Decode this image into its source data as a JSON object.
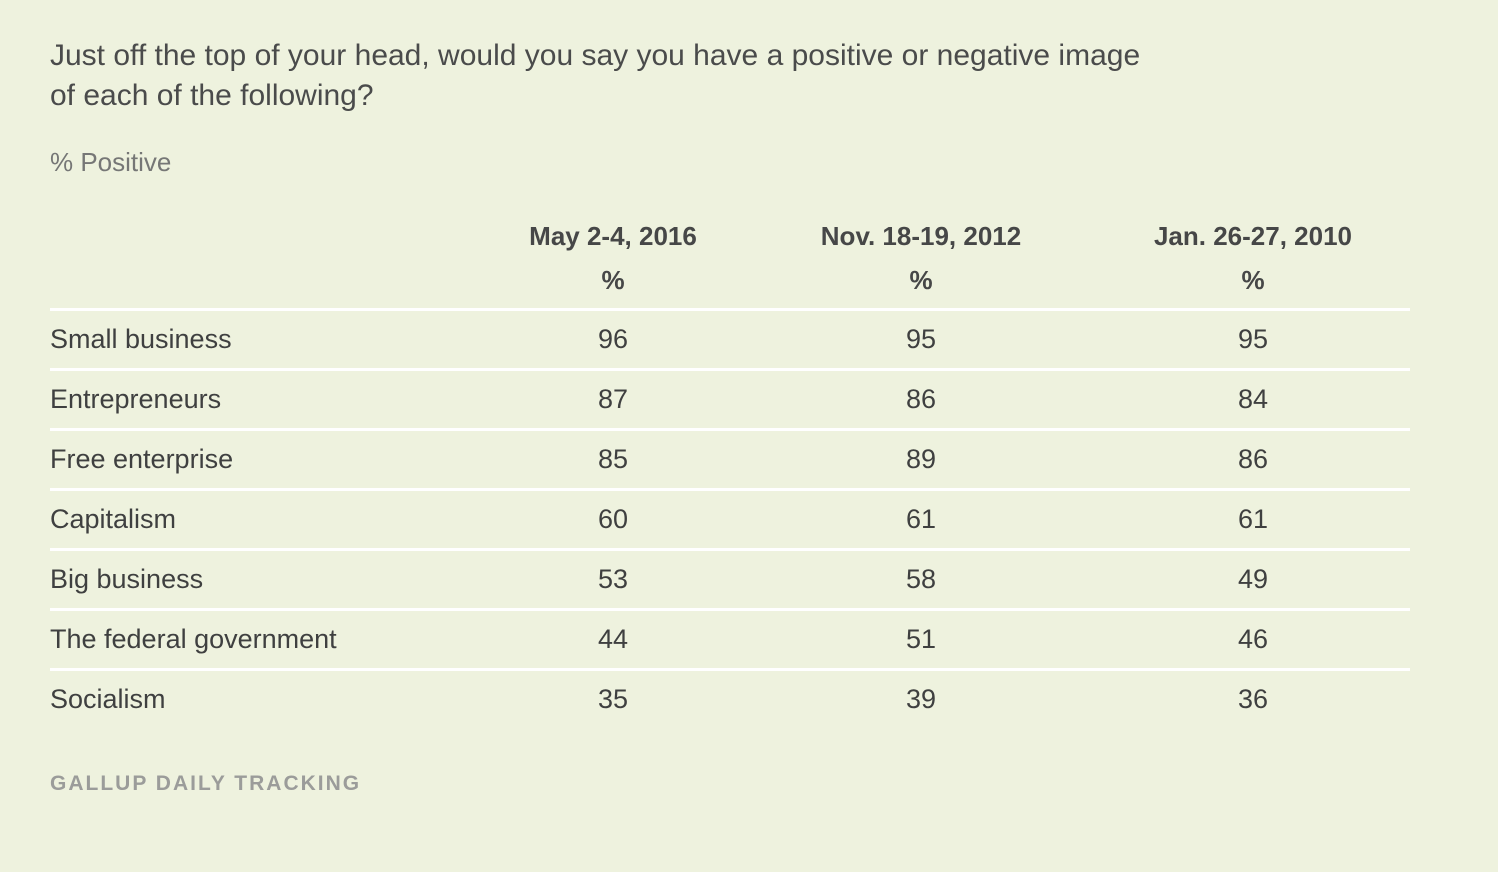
{
  "chart_data": {
    "type": "table",
    "title": "Just off the top of your head, would you say you have a positive or negative image of each of the following?",
    "subtitle": "% Positive",
    "columns": [
      {
        "label": "May 2-4, 2016",
        "unit": "%"
      },
      {
        "label": "Nov. 18-19, 2012",
        "unit": "%"
      },
      {
        "label": "Jan. 26-27, 2010",
        "unit": "%"
      }
    ],
    "rows": [
      {
        "label": "Small business",
        "values": [
          96,
          95,
          95
        ]
      },
      {
        "label": "Entrepreneurs",
        "values": [
          87,
          86,
          84
        ]
      },
      {
        "label": "Free enterprise",
        "values": [
          85,
          89,
          86
        ]
      },
      {
        "label": "Capitalism",
        "values": [
          60,
          61,
          61
        ]
      },
      {
        "label": "Big business",
        "values": [
          53,
          58,
          49
        ]
      },
      {
        "label": "The federal government",
        "values": [
          44,
          51,
          46
        ]
      },
      {
        "label": "Socialism",
        "values": [
          35,
          39,
          36
        ]
      }
    ],
    "source": "GALLUP DAILY TRACKING"
  },
  "colors": {
    "background": "#eef2de",
    "divider": "#ffffff",
    "text": "#3f4040",
    "muted": "#9b9c9a"
  }
}
